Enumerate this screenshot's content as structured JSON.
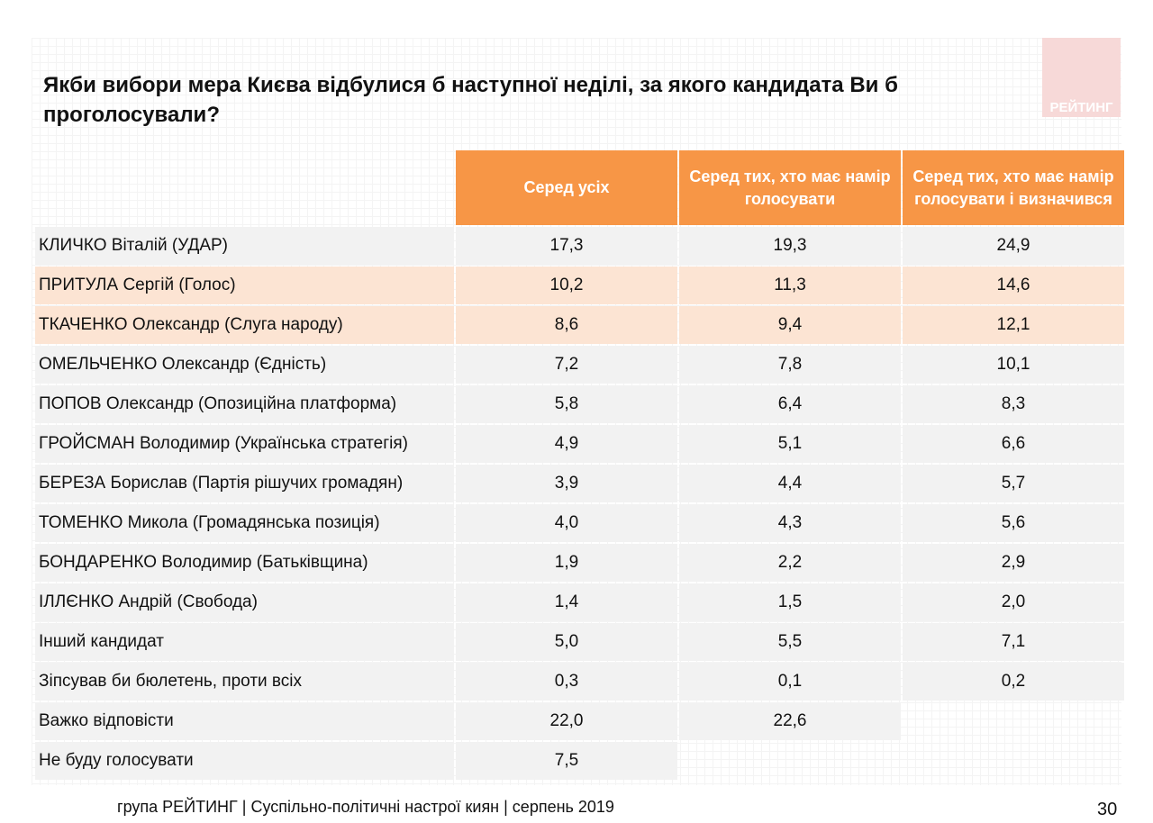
{
  "title": "Якби вибори мера Києва відбулися б наступної неділі, за якого кандидата Ви б проголосували?",
  "logo_text": "РЕЙТИНГ",
  "colors": {
    "header": "#f79646",
    "highlight_row": "#fce4d3",
    "row": "#f2f2f2"
  },
  "columns": [
    "Серед усіх",
    "Серед тих, хто має намір голосувати",
    "Серед тих, хто має намір голосувати і визначився"
  ],
  "rows": [
    {
      "name": "КЛИЧКО Віталій (УДАР)",
      "values": [
        "17,3",
        "19,3",
        "24,9"
      ],
      "highlight": false
    },
    {
      "name": "ПРИТУЛА Сергій (Голос)",
      "values": [
        "10,2",
        "11,3",
        "14,6"
      ],
      "highlight": true
    },
    {
      "name": "ТКАЧЕНКО Олександр (Слуга народу)",
      "values": [
        "8,6",
        "9,4",
        "12,1"
      ],
      "highlight": true
    },
    {
      "name": "ОМЕЛЬЧЕНКО Олександр (Єдність)",
      "values": [
        "7,2",
        "7,8",
        "10,1"
      ],
      "highlight": false
    },
    {
      "name": "ПОПОВ Олександр (Опозиційна платформа)",
      "values": [
        "5,8",
        "6,4",
        "8,3"
      ],
      "highlight": false
    },
    {
      "name": "ГРОЙСМАН Володимир (Українська стратегія)",
      "values": [
        "4,9",
        "5,1",
        "6,6"
      ],
      "highlight": false
    },
    {
      "name": "БЕРЕЗА Борислав (Партія рішучих громадян)",
      "values": [
        "3,9",
        "4,4",
        "5,7"
      ],
      "highlight": false
    },
    {
      "name": "ТОМЕНКО Микола (Громадянська позиція)",
      "values": [
        "4,0",
        "4,3",
        "5,6"
      ],
      "highlight": false
    },
    {
      "name": "БОНДАРЕНКО Володимир (Батьківщина)",
      "values": [
        "1,9",
        "2,2",
        "2,9"
      ],
      "highlight": false
    },
    {
      "name": "ІЛЛЄНКО Андрій (Свобода)",
      "values": [
        "1,4",
        "1,5",
        "2,0"
      ],
      "highlight": false
    },
    {
      "name": "Інший кандидат",
      "values": [
        "5,0",
        "5,5",
        "7,1"
      ],
      "highlight": false
    },
    {
      "name": "Зіпсував би бюлетень, проти всіх",
      "values": [
        "0,3",
        "0,1",
        "0,2"
      ],
      "highlight": false
    },
    {
      "name": "Важко відповісти",
      "values": [
        "22,0",
        "22,6",
        null
      ],
      "highlight": false
    },
    {
      "name": "Не буду голосувати",
      "values": [
        "7,5",
        null,
        null
      ],
      "highlight": false
    }
  ],
  "footer": "група РЕЙТИНГ | Суспільно-політичні настрої киян | серпень  2019",
  "page_number": "30"
}
